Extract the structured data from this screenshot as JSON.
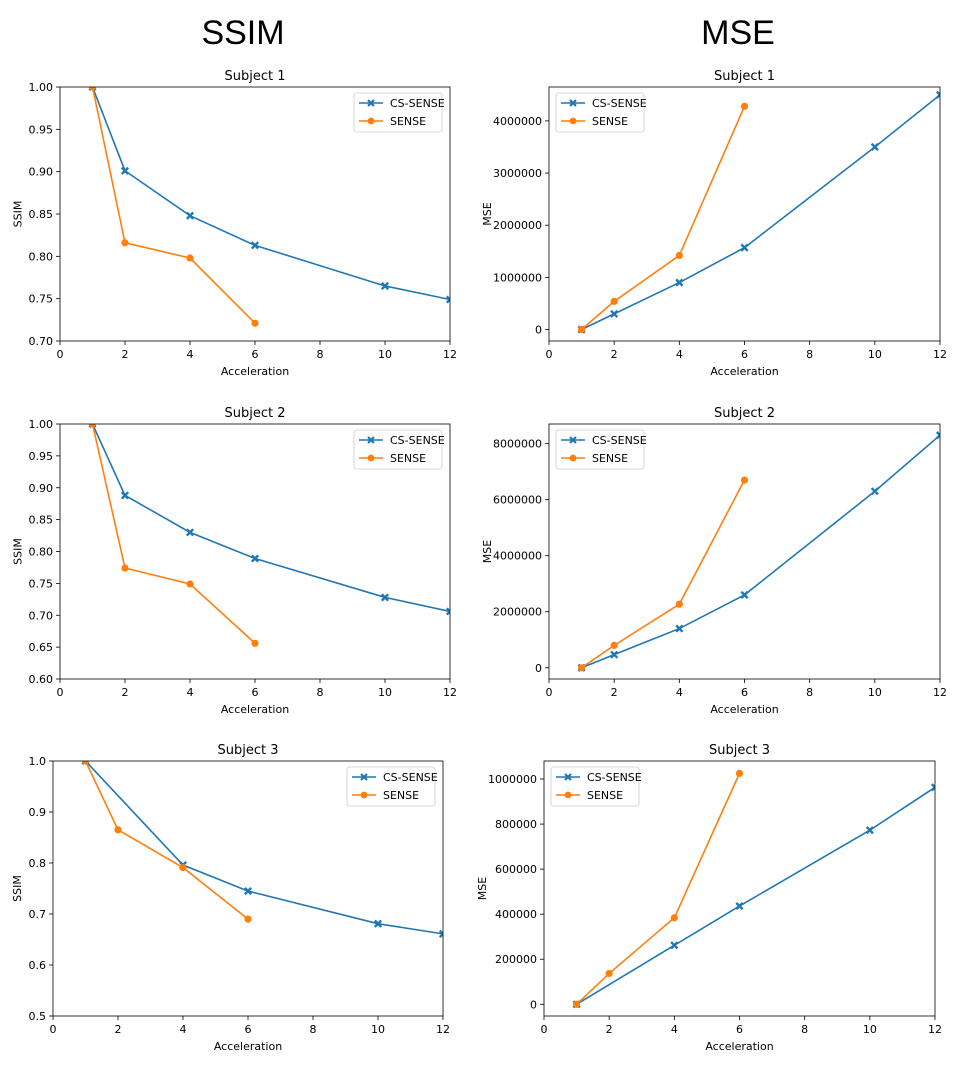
{
  "column_headers": [
    "SSIM",
    "MSE"
  ],
  "colors": {
    "cs_sense": "#1f77b4",
    "sense": "#ff7f0e",
    "axis": "#000000"
  },
  "chart_data": [
    {
      "type": "line",
      "title": "Subject 1",
      "xlabel": "Acceleration",
      "ylabel": "SSIM",
      "xlim": [
        0,
        12
      ],
      "ylim": [
        0.7,
        1.0
      ],
      "xticks": [
        0,
        2,
        4,
        6,
        8,
        10,
        12
      ],
      "yticks": [
        0.7,
        0.75,
        0.8,
        0.85,
        0.9,
        0.95,
        1.0
      ],
      "ytick_labels": [
        "0.70",
        "0.75",
        "0.80",
        "0.85",
        "0.90",
        "0.95",
        "1.00"
      ],
      "legend": "top-right",
      "series": [
        {
          "name": "CS-SENSE",
          "marker": "x",
          "x": [
            1,
            2,
            4,
            6,
            10,
            12
          ],
          "values": [
            1.0,
            0.901,
            0.848,
            0.813,
            0.765,
            0.749
          ]
        },
        {
          "name": "SENSE",
          "marker": "o",
          "x": [
            1,
            2,
            4,
            6
          ],
          "values": [
            1.0,
            0.816,
            0.798,
            0.721
          ]
        }
      ]
    },
    {
      "type": "line",
      "title": "Subject 1",
      "xlabel": "Acceleration",
      "ylabel": "MSE",
      "xlim": [
        0,
        12
      ],
      "ylim": [
        -220000,
        4650000
      ],
      "xticks": [
        0,
        2,
        4,
        6,
        8,
        10,
        12
      ],
      "yticks": [
        0,
        1000000,
        2000000,
        3000000,
        4000000
      ],
      "ytick_labels": [
        "0",
        "1000000",
        "2000000",
        "3000000",
        "4000000"
      ],
      "legend": "top-left",
      "series": [
        {
          "name": "CS-SENSE",
          "marker": "x",
          "x": [
            1,
            2,
            4,
            6,
            10,
            12
          ],
          "values": [
            0,
            300000,
            900000,
            1570000,
            3500000,
            4500000
          ]
        },
        {
          "name": "SENSE",
          "marker": "o",
          "x": [
            1,
            2,
            4,
            6
          ],
          "values": [
            0,
            540000,
            1420000,
            4280000
          ]
        }
      ]
    },
    {
      "type": "line",
      "title": "Subject 2",
      "xlabel": "Acceleration",
      "ylabel": "SSIM",
      "xlim": [
        0,
        12
      ],
      "ylim": [
        0.6,
        1.0
      ],
      "xticks": [
        0,
        2,
        4,
        6,
        8,
        10,
        12
      ],
      "yticks": [
        0.6,
        0.65,
        0.7,
        0.75,
        0.8,
        0.85,
        0.9,
        0.95,
        1.0
      ],
      "ytick_labels": [
        "0.60",
        "0.65",
        "0.70",
        "0.75",
        "0.80",
        "0.85",
        "0.90",
        "0.95",
        "1.00"
      ],
      "legend": "top-right",
      "series": [
        {
          "name": "CS-SENSE",
          "marker": "x",
          "x": [
            1,
            2,
            4,
            6,
            10,
            12
          ],
          "values": [
            1.0,
            0.888,
            0.83,
            0.789,
            0.728,
            0.706
          ]
        },
        {
          "name": "SENSE",
          "marker": "o",
          "x": [
            1,
            2,
            4,
            6
          ],
          "values": [
            1.0,
            0.774,
            0.749,
            0.656
          ]
        }
      ]
    },
    {
      "type": "line",
      "title": "Subject 2",
      "xlabel": "Acceleration",
      "ylabel": "MSE",
      "xlim": [
        0,
        12
      ],
      "ylim": [
        -400000,
        8700000
      ],
      "xticks": [
        0,
        2,
        4,
        6,
        8,
        10,
        12
      ],
      "yticks": [
        0,
        2000000,
        4000000,
        6000000,
        8000000
      ],
      "ytick_labels": [
        "0",
        "2000000",
        "4000000",
        "6000000",
        "8000000"
      ],
      "legend": "top-left",
      "series": [
        {
          "name": "CS-SENSE",
          "marker": "x",
          "x": [
            1,
            2,
            4,
            6,
            10,
            12
          ],
          "values": [
            0,
            470000,
            1400000,
            2600000,
            6300000,
            8300000
          ]
        },
        {
          "name": "SENSE",
          "marker": "o",
          "x": [
            1,
            2,
            4,
            6
          ],
          "values": [
            0,
            800000,
            2270000,
            6700000
          ]
        }
      ]
    },
    {
      "type": "line",
      "title": "Subject 3",
      "xlabel": "Acceleration",
      "ylabel": "SSIM",
      "xlim": [
        0,
        12
      ],
      "ylim": [
        0.5,
        1.0
      ],
      "xticks": [
        0,
        2,
        4,
        6,
        8,
        10,
        12
      ],
      "yticks": [
        0.5,
        0.6,
        0.7,
        0.8,
        0.9,
        1.0
      ],
      "ytick_labels": [
        "0.5",
        "0.6",
        "0.7",
        "0.8",
        "0.9",
        "1.0"
      ],
      "legend": "top-right",
      "series": [
        {
          "name": "CS-SENSE",
          "marker": "x",
          "x": [
            1,
            4,
            6,
            10,
            12
          ],
          "values": [
            1.0,
            0.796,
            0.745,
            0.681,
            0.661
          ]
        },
        {
          "name": "SENSE",
          "marker": "o",
          "x": [
            1,
            2,
            4,
            6
          ],
          "values": [
            1.0,
            0.865,
            0.791,
            0.69
          ]
        }
      ]
    },
    {
      "type": "line",
      "title": "Subject 3",
      "xlabel": "Acceleration",
      "ylabel": "MSE",
      "xlim": [
        0,
        12
      ],
      "ylim": [
        -52000,
        1080000
      ],
      "xticks": [
        0,
        2,
        4,
        6,
        8,
        10,
        12
      ],
      "yticks": [
        0,
        200000,
        400000,
        600000,
        800000,
        1000000
      ],
      "ytick_labels": [
        "0",
        "200000",
        "400000",
        "600000",
        "800000",
        "1000000"
      ],
      "legend": "top-left",
      "series": [
        {
          "name": "CS-SENSE",
          "marker": "x",
          "x": [
            1,
            4,
            6,
            10,
            12
          ],
          "values": [
            0,
            262000,
            436000,
            773000,
            963000
          ]
        },
        {
          "name": "SENSE",
          "marker": "o",
          "x": [
            1,
            2,
            4,
            6
          ],
          "values": [
            0,
            137000,
            384000,
            1025000
          ]
        }
      ]
    }
  ]
}
